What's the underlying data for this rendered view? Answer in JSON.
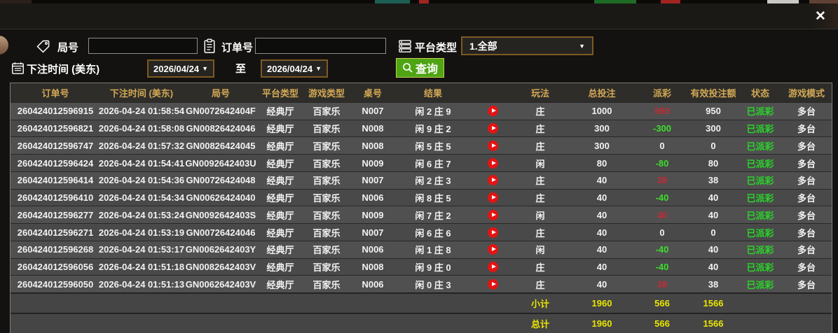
{
  "titlebar": {
    "close": "✕"
  },
  "icons": {
    "arrow_down": "▼",
    "close": "✕"
  },
  "filters": {
    "round": {
      "label": "局号",
      "value": ""
    },
    "order": {
      "label": "订单号",
      "value": ""
    },
    "platform": {
      "label": "平台类型",
      "value": "1.全部"
    },
    "bet_time": {
      "label": "下注时间 (美东)"
    },
    "date_from": "2026/04/24",
    "date_to": "2026/04/24",
    "range_separator": "至",
    "search_label": "查询"
  },
  "table": {
    "headers": {
      "order": "订单号",
      "time": "下注时间 (美东)",
      "round": "局号",
      "platform": "平台类型",
      "game": "游戏类型",
      "table_no": "桌号",
      "result": "结果",
      "play_icon": "",
      "play": "玩法",
      "bet": "总投注",
      "payout": "派彩",
      "valid": "有效投注额",
      "status": "状态",
      "mode": "游戏模式"
    },
    "rows": [
      {
        "order": "260424012596915",
        "time": "2026-04-24 01:58:54",
        "round": "GN0072642404F",
        "platform": "经典厅",
        "game": "百家乐",
        "table_no": "N007",
        "result": "闲 2 庄 9",
        "play": "庄",
        "bet": "1000",
        "payout": "950",
        "valid": "950",
        "status": "已派彩",
        "mode": "多台"
      },
      {
        "order": "260424012596821",
        "time": "2026-04-24 01:58:08",
        "round": "GN00826424046",
        "platform": "经典厅",
        "game": "百家乐",
        "table_no": "N008",
        "result": "闲 9 庄 2",
        "play": "庄",
        "bet": "300",
        "payout": "-300",
        "valid": "300",
        "status": "已派彩",
        "mode": "多台"
      },
      {
        "order": "260424012596747",
        "time": "2026-04-24 01:57:32",
        "round": "GN00826424045",
        "platform": "经典厅",
        "game": "百家乐",
        "table_no": "N008",
        "result": "闲 5 庄 5",
        "play": "庄",
        "bet": "300",
        "payout": "0",
        "valid": "0",
        "status": "已派彩",
        "mode": "多台"
      },
      {
        "order": "260424012596424",
        "time": "2026-04-24 01:54:41",
        "round": "GN0092642403U",
        "platform": "经典厅",
        "game": "百家乐",
        "table_no": "N009",
        "result": "闲 6 庄 7",
        "play": "闲",
        "bet": "80",
        "payout": "-80",
        "valid": "80",
        "status": "已派彩",
        "mode": "多台"
      },
      {
        "order": "260424012596414",
        "time": "2026-04-24 01:54:36",
        "round": "GN00726424048",
        "platform": "经典厅",
        "game": "百家乐",
        "table_no": "N007",
        "result": "闲 2 庄 3",
        "play": "庄",
        "bet": "40",
        "payout": "38",
        "valid": "38",
        "status": "已派彩",
        "mode": "多台"
      },
      {
        "order": "260424012596410",
        "time": "2026-04-24 01:54:34",
        "round": "GN00626424040",
        "platform": "经典厅",
        "game": "百家乐",
        "table_no": "N006",
        "result": "闲 8 庄 5",
        "play": "庄",
        "bet": "40",
        "payout": "-40",
        "valid": "40",
        "status": "已派彩",
        "mode": "多台"
      },
      {
        "order": "260424012596277",
        "time": "2026-04-24 01:53:24",
        "round": "GN0092642403S",
        "platform": "经典厅",
        "game": "百家乐",
        "table_no": "N009",
        "result": "闲 7 庄 2",
        "play": "闲",
        "bet": "40",
        "payout": "40",
        "valid": "40",
        "status": "已派彩",
        "mode": "多台"
      },
      {
        "order": "260424012596271",
        "time": "2026-04-24 01:53:19",
        "round": "GN00726424046",
        "platform": "经典厅",
        "game": "百家乐",
        "table_no": "N007",
        "result": "闲 6 庄 6",
        "play": "庄",
        "bet": "40",
        "payout": "0",
        "valid": "0",
        "status": "已派彩",
        "mode": "多台"
      },
      {
        "order": "260424012596268",
        "time": "2026-04-24 01:53:17",
        "round": "GN0062642403Y",
        "platform": "经典厅",
        "game": "百家乐",
        "table_no": "N006",
        "result": "闲 1 庄 8",
        "play": "闲",
        "bet": "40",
        "payout": "-40",
        "valid": "40",
        "status": "已派彩",
        "mode": "多台"
      },
      {
        "order": "260424012596056",
        "time": "2026-04-24 01:51:18",
        "round": "GN0082642403V",
        "platform": "经典厅",
        "game": "百家乐",
        "table_no": "N008",
        "result": "闲 9 庄 0",
        "play": "庄",
        "bet": "40",
        "payout": "-40",
        "valid": "40",
        "status": "已派彩",
        "mode": "多台"
      },
      {
        "order": "260424012596050",
        "time": "2026-04-24 01:51:13",
        "round": "GN0062642403V",
        "platform": "经典厅",
        "game": "百家乐",
        "table_no": "N006",
        "result": "闲 0 庄 3",
        "play": "庄",
        "bet": "40",
        "payout": "38",
        "valid": "38",
        "status": "已派彩",
        "mode": "多台"
      }
    ],
    "subtotal": {
      "label": "小计",
      "bet": "1960",
      "payout": "566",
      "valid": "1566"
    },
    "total": {
      "label": "总计",
      "bet": "1960",
      "payout": "566",
      "valid": "1566"
    }
  },
  "colors": {
    "header_gold": "#d2a855",
    "positive_red": "#c22b35",
    "negative_green": "#3ede2c",
    "status_green": "#2bd32b",
    "summary_yellow": "#e9e500",
    "button_green": "#4fa414",
    "box_border_brown": "#7d5a23"
  }
}
